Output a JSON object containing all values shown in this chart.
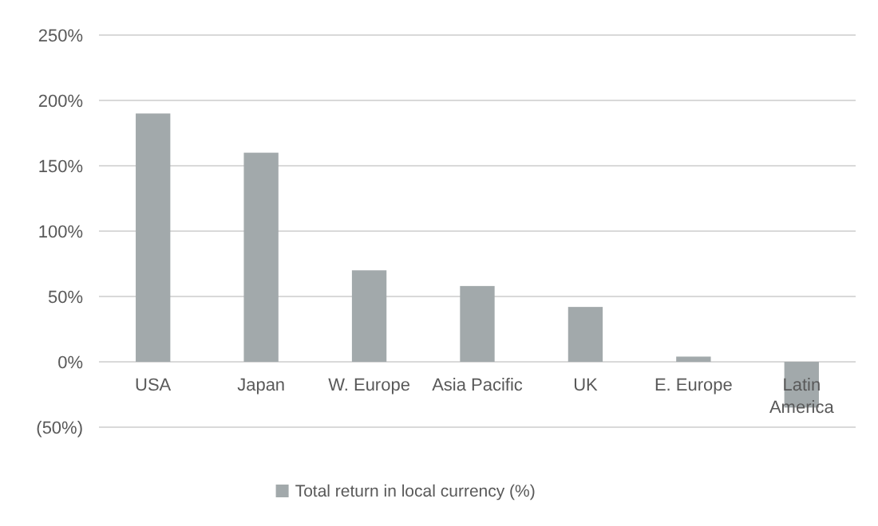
{
  "chart_data": {
    "type": "bar",
    "categories": [
      "USA",
      "Japan",
      "W. Europe",
      "Asia Pacific",
      "UK",
      "E. Europe",
      "Latin America"
    ],
    "series": [
      {
        "name": "Total return in local currency (%)",
        "color": "#a2a9ab",
        "values": [
          190,
          160,
          70,
          58,
          42,
          4,
          -35
        ]
      }
    ],
    "ylim": [
      -50,
      250
    ],
    "yticks": [
      {
        "value": -50,
        "label": "(50%)"
      },
      {
        "value": 0,
        "label": "0%"
      },
      {
        "value": 50,
        "label": "50%"
      },
      {
        "value": 100,
        "label": "100%"
      },
      {
        "value": 150,
        "label": "150%"
      },
      {
        "value": 200,
        "label": "200%"
      },
      {
        "value": 250,
        "label": "250%"
      }
    ],
    "grid": "y",
    "legend": "bottom"
  }
}
